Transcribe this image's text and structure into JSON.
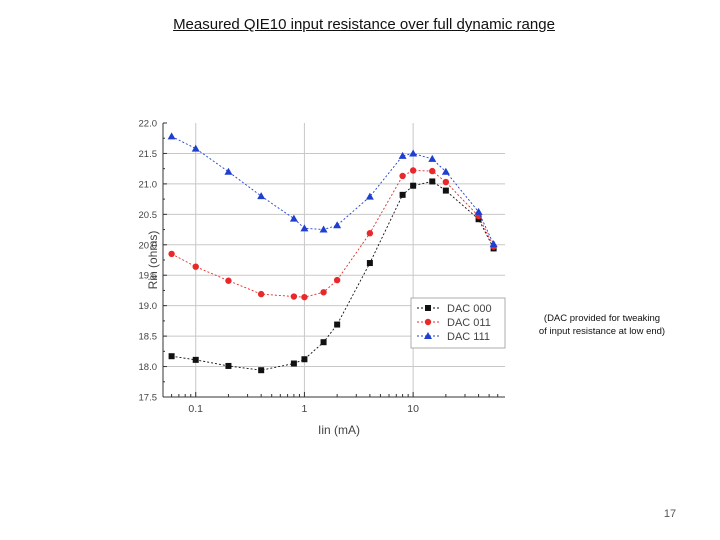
{
  "slide": {
    "title": "Measured QIE10 input resistance over full dynamic range",
    "note_line1": "(DAC provided for tweaking",
    "note_line2": "of input resistance at low end)",
    "page_number": "17"
  },
  "chart_data": {
    "type": "scatter",
    "title": "",
    "xlabel": "Iin (mA)",
    "ylabel": "Rin (ohms)",
    "xscale": "log",
    "xlim": [
      0.05,
      70
    ],
    "ylim": [
      17.5,
      22.0
    ],
    "x_ticks": [
      0.1,
      1,
      10
    ],
    "x_tick_labels": [
      "0.1",
      "1",
      "10"
    ],
    "y_ticks": [
      17.5,
      18.0,
      18.5,
      19.0,
      19.5,
      20.0,
      20.5,
      21.0,
      21.5,
      22.0
    ],
    "y_tick_labels": [
      "17.5",
      "18.0",
      "18.5",
      "19.0",
      "19.5",
      "20.0",
      "20.5",
      "21.0",
      "21.5",
      "22.0"
    ],
    "grid": true,
    "legend_position": "lower-right",
    "series": [
      {
        "name": "DAC 000",
        "marker": "square",
        "color": "#111111",
        "x": [
          0.06,
          0.1,
          0.2,
          0.4,
          0.8,
          1.0,
          1.5,
          2.0,
          4.0,
          8.0,
          10.0,
          15.0,
          20.0,
          40.0,
          55.0
        ],
        "y": [
          18.17,
          18.11,
          18.01,
          17.94,
          18.05,
          18.12,
          18.4,
          18.69,
          19.7,
          20.82,
          20.97,
          21.04,
          20.89,
          20.42,
          19.94
        ]
      },
      {
        "name": "DAC 011",
        "marker": "circle",
        "color": "#e8282a",
        "x": [
          0.06,
          0.1,
          0.2,
          0.4,
          0.8,
          1.0,
          1.5,
          2.0,
          4.0,
          8.0,
          10.0,
          15.0,
          20.0,
          40.0,
          55.0
        ],
        "y": [
          19.85,
          19.64,
          19.41,
          19.19,
          19.15,
          19.14,
          19.22,
          19.42,
          20.19,
          21.13,
          21.22,
          21.21,
          21.03,
          20.47,
          19.97
        ]
      },
      {
        "name": "DAC 111",
        "marker": "triangle",
        "color": "#1f3fd1",
        "x": [
          0.06,
          0.1,
          0.2,
          0.4,
          0.8,
          1.0,
          1.5,
          2.0,
          4.0,
          8.0,
          10.0,
          15.0,
          20.0,
          40.0,
          55.0
        ],
        "y": [
          21.78,
          21.58,
          21.2,
          20.8,
          20.43,
          20.27,
          20.25,
          20.32,
          20.79,
          21.46,
          21.5,
          21.41,
          21.2,
          20.54,
          20.01
        ]
      }
    ]
  }
}
